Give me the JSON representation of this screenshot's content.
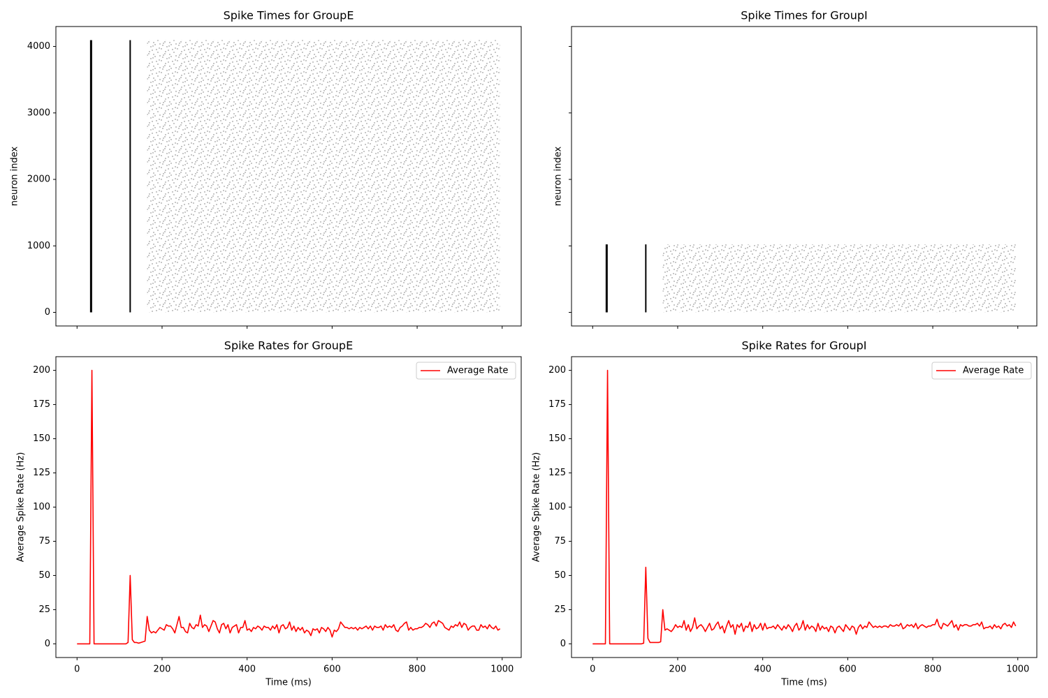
{
  "chart_data": [
    {
      "type": "raster",
      "title": "Spike Times for GroupE",
      "y_label": "neuron index",
      "color": "#000000",
      "volleys": [
        33,
        125
      ],
      "neuron_range": [
        0,
        4095
      ],
      "asynchronous": [
        165,
        995
      ],
      "xlim": [
        -49.75,
        1044.75
      ],
      "xticks": [
        0,
        200,
        400,
        600,
        800,
        1000
      ],
      "xtick_labels": false,
      "ylim": [
        -204.75,
        4299.75
      ],
      "yticks": [
        0,
        1000,
        2000,
        3000,
        4000
      ],
      "ytick_labels": true
    },
    {
      "type": "raster",
      "title": "Spike Times for GroupI",
      "y_label": "neuron index",
      "color": "#000000",
      "volleys": [
        33,
        125
      ],
      "neuron_range": [
        0,
        1023
      ],
      "asynchronous": [
        165,
        995
      ],
      "xlim": [
        -49.75,
        1044.75
      ],
      "xticks": [
        0,
        200,
        400,
        600,
        800,
        1000
      ],
      "xtick_labels": false,
      "ylim": [
        -204.75,
        4299.75
      ],
      "yticks": [
        0,
        1000,
        2000,
        3000,
        4000
      ],
      "ytick_labels": false
    },
    {
      "type": "line",
      "title": "Spike Rates for GroupE",
      "x_label": "Time (ms)",
      "y_label": "Average Spike Rate (Hz)",
      "legend": "upper right",
      "x": [
        0,
        5,
        10,
        15,
        20,
        25,
        30,
        35,
        40,
        45,
        50,
        55,
        60,
        65,
        70,
        75,
        80,
        85,
        90,
        95,
        100,
        105,
        110,
        115,
        120,
        125,
        130,
        135,
        140,
        145,
        150,
        155,
        160,
        165,
        170,
        175,
        180,
        185,
        190,
        195,
        200,
        205,
        210,
        215,
        220,
        225,
        230,
        235,
        240,
        245,
        250,
        255,
        260,
        265,
        270,
        275,
        280,
        285,
        290,
        295,
        300,
        305,
        310,
        315,
        320,
        325,
        330,
        335,
        340,
        345,
        350,
        355,
        360,
        365,
        370,
        375,
        380,
        385,
        390,
        395,
        400,
        405,
        410,
        415,
        420,
        425,
        430,
        435,
        440,
        445,
        450,
        455,
        460,
        465,
        470,
        475,
        480,
        485,
        490,
        495,
        500,
        505,
        510,
        515,
        520,
        525,
        530,
        535,
        540,
        545,
        550,
        555,
        560,
        565,
        570,
        575,
        580,
        585,
        590,
        595,
        600,
        605,
        610,
        615,
        620,
        625,
        630,
        635,
        640,
        645,
        650,
        655,
        660,
        665,
        670,
        675,
        680,
        685,
        690,
        695,
        700,
        705,
        710,
        715,
        720,
        725,
        730,
        735,
        740,
        745,
        750,
        755,
        760,
        765,
        770,
        775,
        780,
        785,
        790,
        795,
        800,
        805,
        810,
        815,
        820,
        825,
        830,
        835,
        840,
        845,
        850,
        855,
        860,
        865,
        870,
        875,
        880,
        885,
        890,
        895,
        900,
        905,
        910,
        915,
        920,
        925,
        930,
        935,
        940,
        945,
        950,
        955,
        960,
        965,
        970,
        975,
        980,
        985,
        990,
        995
      ],
      "series": [
        {
          "name": "Average Rate",
          "color": "#ff0000",
          "values": [
            0,
            0,
            0,
            0,
            0,
            0,
            0,
            200,
            0,
            0,
            0,
            0,
            0,
            0,
            0,
            0,
            0,
            0,
            0,
            0,
            0,
            0,
            0,
            0,
            1,
            50,
            3,
            1,
            1,
            0.5,
            1,
            1.5,
            2,
            20,
            10,
            8,
            9,
            8,
            10,
            12,
            11,
            10,
            14,
            13,
            13,
            11,
            8,
            14,
            20,
            12,
            12,
            9,
            8,
            15,
            12,
            11,
            14,
            13,
            21,
            12,
            14,
            13,
            9,
            13,
            17,
            16,
            11,
            8,
            14,
            15,
            11,
            14,
            8,
            12,
            13,
            14,
            8,
            12,
            12,
            17,
            10,
            11,
            9,
            12,
            11,
            13,
            12,
            10,
            13,
            12,
            12,
            10,
            13,
            11,
            14,
            8,
            13,
            14,
            11,
            12,
            16,
            10,
            13,
            9,
            12,
            10,
            12,
            8,
            10,
            9,
            6,
            11,
            10,
            11,
            8,
            12,
            11,
            9,
            12,
            10,
            5,
            10,
            9,
            11,
            16,
            14,
            12,
            12,
            11,
            12,
            11,
            12,
            10,
            12,
            11,
            12,
            13,
            11,
            13,
            10,
            13,
            12,
            12,
            13,
            10,
            14,
            12,
            13,
            12,
            14,
            10,
            9,
            12,
            13,
            15,
            16,
            10,
            12,
            10,
            11,
            11,
            12,
            12,
            13,
            15,
            14,
            12,
            15,
            16,
            13,
            17,
            16,
            15,
            12,
            11,
            10,
            13,
            12,
            14,
            13,
            16,
            12,
            15,
            14,
            10,
            12,
            13,
            13,
            10,
            10,
            14,
            12,
            13,
            11,
            14,
            12,
            11,
            13,
            10,
            11
          ]
        }
      ],
      "xlim": [
        -49.75,
        1044.75
      ],
      "xticks": [
        0,
        200,
        400,
        600,
        800,
        1000
      ],
      "ylim": [
        -10,
        210
      ],
      "yticks": [
        0,
        25,
        50,
        75,
        100,
        125,
        150,
        175,
        200
      ]
    },
    {
      "type": "line",
      "title": "Spike Rates for GroupI",
      "x_label": "Time (ms)",
      "y_label": "Average Spike Rate (Hz)",
      "legend": "upper right",
      "x": [
        0,
        5,
        10,
        15,
        20,
        25,
        30,
        35,
        40,
        45,
        50,
        55,
        60,
        65,
        70,
        75,
        80,
        85,
        90,
        95,
        100,
        105,
        110,
        115,
        120,
        125,
        130,
        135,
        140,
        145,
        150,
        155,
        160,
        165,
        170,
        175,
        180,
        185,
        190,
        195,
        200,
        205,
        210,
        215,
        220,
        225,
        230,
        235,
        240,
        245,
        250,
        255,
        260,
        265,
        270,
        275,
        280,
        285,
        290,
        295,
        300,
        305,
        310,
        315,
        320,
        325,
        330,
        335,
        340,
        345,
        350,
        355,
        360,
        365,
        370,
        375,
        380,
        385,
        390,
        395,
        400,
        405,
        410,
        415,
        420,
        425,
        430,
        435,
        440,
        445,
        450,
        455,
        460,
        465,
        470,
        475,
        480,
        485,
        490,
        495,
        500,
        505,
        510,
        515,
        520,
        525,
        530,
        535,
        540,
        545,
        550,
        555,
        560,
        565,
        570,
        575,
        580,
        585,
        590,
        595,
        600,
        605,
        610,
        615,
        620,
        625,
        630,
        635,
        640,
        645,
        650,
        655,
        660,
        665,
        670,
        675,
        680,
        685,
        690,
        695,
        700,
        705,
        710,
        715,
        720,
        725,
        730,
        735,
        740,
        745,
        750,
        755,
        760,
        765,
        770,
        775,
        780,
        785,
        790,
        795,
        800,
        805,
        810,
        815,
        820,
        825,
        830,
        835,
        840,
        845,
        850,
        855,
        860,
        865,
        870,
        875,
        880,
        885,
        890,
        895,
        900,
        905,
        910,
        915,
        920,
        925,
        930,
        935,
        940,
        945,
        950,
        955,
        960,
        965,
        970,
        975,
        980,
        985,
        990,
        995
      ],
      "series": [
        {
          "name": "Average Rate",
          "color": "#ff0000",
          "values": [
            0,
            0,
            0,
            0,
            0,
            0,
            0,
            200,
            0,
            0,
            0,
            0,
            0,
            0,
            0,
            0,
            0,
            0,
            0,
            0,
            0,
            0,
            0,
            0,
            0.5,
            56,
            4,
            1,
            1,
            1,
            1,
            1,
            1.5,
            25,
            10,
            11,
            10,
            9,
            11,
            14,
            12,
            13,
            12,
            17,
            10,
            14,
            9,
            12,
            19,
            11,
            13,
            14,
            12,
            9,
            12,
            15,
            10,
            11,
            14,
            16,
            11,
            13,
            8,
            13,
            17,
            12,
            14,
            7,
            14,
            12,
            15,
            9,
            13,
            12,
            16,
            9,
            14,
            11,
            12,
            15,
            10,
            15,
            11,
            12,
            12,
            13,
            11,
            14,
            12,
            10,
            13,
            11,
            14,
            12,
            9,
            13,
            15,
            10,
            12,
            17,
            10,
            14,
            11,
            13,
            12,
            9,
            15,
            10,
            13,
            11,
            12,
            9,
            13,
            12,
            8,
            12,
            13,
            11,
            9,
            14,
            12,
            10,
            13,
            12,
            7,
            12,
            14,
            11,
            13,
            12,
            16,
            14,
            12,
            13,
            12,
            13,
            12,
            13,
            13,
            12,
            14,
            13,
            13,
            14,
            13,
            15,
            11,
            12,
            14,
            13,
            14,
            12,
            15,
            11,
            13,
            14,
            13,
            12,
            13,
            13,
            14,
            14,
            18,
            13,
            11,
            15,
            14,
            13,
            15,
            17,
            12,
            14,
            10,
            14,
            13,
            14,
            14,
            13,
            13,
            14,
            14,
            15,
            13,
            16,
            11,
            12,
            12,
            13,
            11,
            14,
            12,
            13,
            11,
            14,
            15,
            13,
            14,
            12,
            16,
            13
          ]
        }
      ],
      "xlim": [
        -49.75,
        1044.75
      ],
      "xticks": [
        0,
        200,
        400,
        600,
        800,
        1000
      ],
      "ylim": [
        -10,
        210
      ],
      "yticks": [
        0,
        25,
        50,
        75,
        100,
        125,
        150,
        175,
        200
      ]
    }
  ]
}
